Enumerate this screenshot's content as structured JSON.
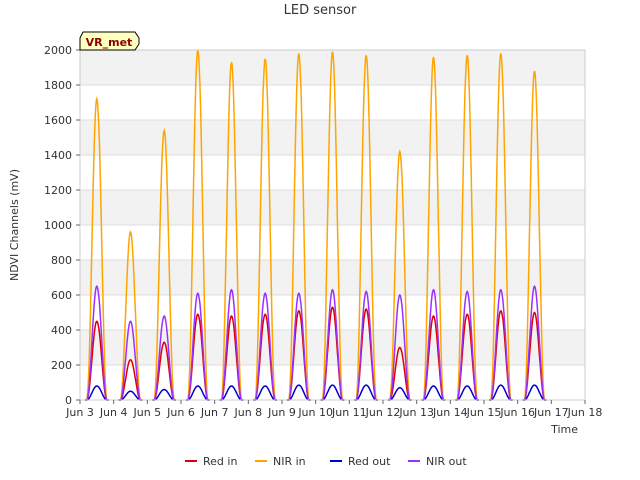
{
  "chart_data": {
    "type": "line",
    "title": "LED sensor",
    "xlabel": "Time",
    "ylabel": "NDVI Channels (mV)",
    "badge": "VR_met",
    "ylim": [
      0,
      2000
    ],
    "xlim": [
      3,
      18
    ],
    "y_ticks": [
      0,
      200,
      400,
      600,
      800,
      1000,
      1200,
      1400,
      1600,
      1800,
      2000
    ],
    "x_ticks": [
      {
        "day": 3,
        "label": "Jun 3"
      },
      {
        "day": 4,
        "label": "Jun 4"
      },
      {
        "day": 5,
        "label": "Jun 5"
      },
      {
        "day": 6,
        "label": "Jun 6"
      },
      {
        "day": 7,
        "label": "Jun 7"
      },
      {
        "day": 8,
        "label": "Jun 8"
      },
      {
        "day": 9,
        "label": "Jun 9"
      },
      {
        "day": 10,
        "label": "Jun 10"
      },
      {
        "day": 11,
        "label": "Jun 11"
      },
      {
        "day": 12,
        "label": "Jun 12"
      },
      {
        "day": 13,
        "label": "Jun 13"
      },
      {
        "day": 14,
        "label": "Jun 14"
      },
      {
        "day": 15,
        "label": "Jun 15"
      },
      {
        "day": 16,
        "label": "Jun 16"
      },
      {
        "day": 17,
        "label": "Jun 17"
      },
      {
        "day": 18,
        "label": "Jun 18"
      }
    ],
    "days": [
      3.5,
      4.5,
      5.5,
      6.5,
      7.5,
      8.5,
      9.5,
      10.5,
      11.5,
      12.5,
      13.5,
      14.5,
      15.5,
      16.5
    ],
    "series": [
      {
        "name": "Red in",
        "color": "#dd0000",
        "peaks": [
          450,
          230,
          330,
          490,
          480,
          490,
          510,
          530,
          520,
          300,
          480,
          490,
          510,
          500
        ]
      },
      {
        "name": "NIR in",
        "color": "#ffa500",
        "peaks": [
          1720,
          960,
          1540,
          2000,
          1930,
          1950,
          1980,
          1990,
          1970,
          1420,
          1960,
          1970,
          1980,
          1880
        ]
      },
      {
        "name": "Red out",
        "color": "#0000cc",
        "peaks": [
          80,
          50,
          60,
          80,
          80,
          80,
          85,
          85,
          85,
          70,
          80,
          80,
          85,
          85
        ]
      },
      {
        "name": "NIR out",
        "color": "#9b30ff",
        "peaks": [
          650,
          450,
          480,
          610,
          630,
          610,
          610,
          630,
          620,
          600,
          630,
          620,
          630,
          650
        ]
      }
    ],
    "legend_position": "bottom"
  }
}
